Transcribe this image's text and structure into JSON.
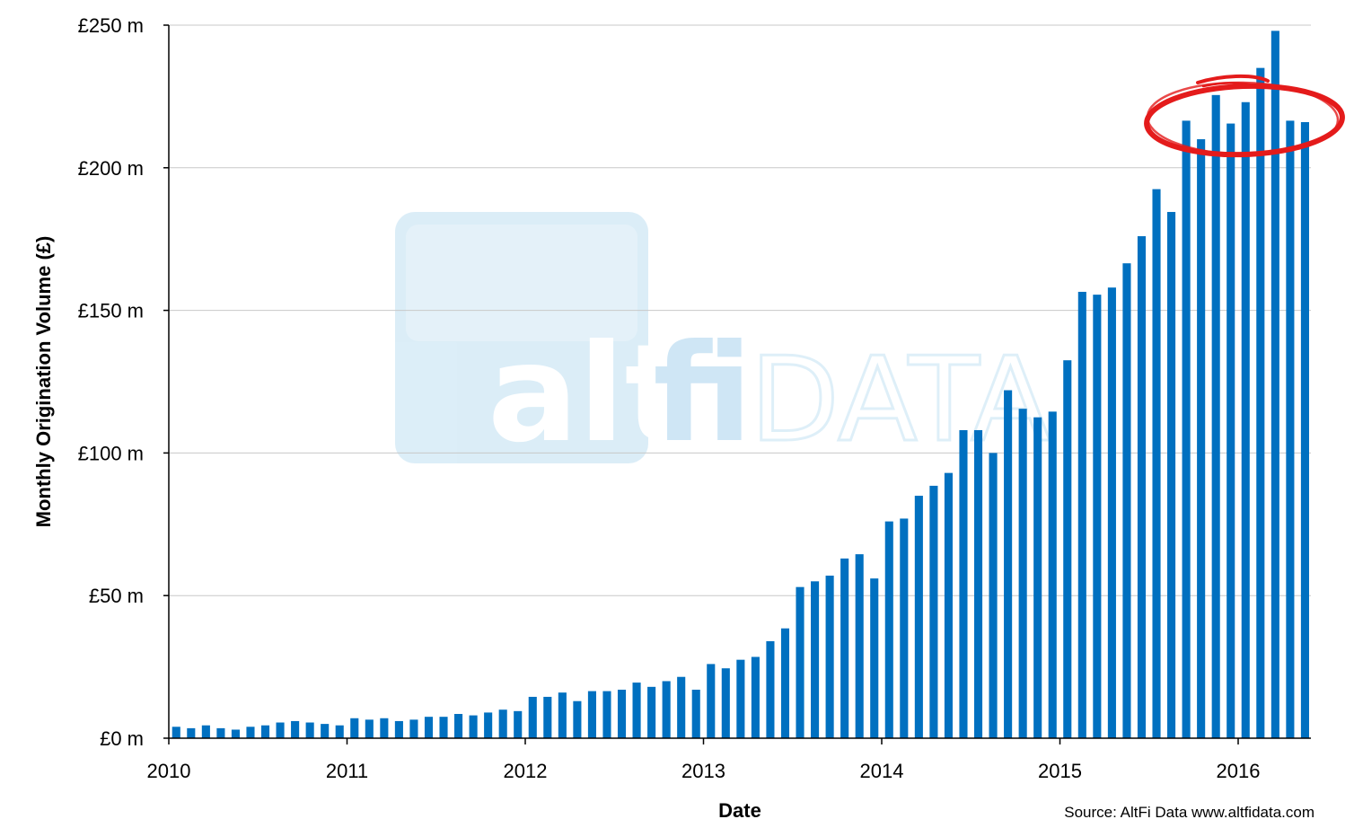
{
  "chart_data": {
    "type": "bar",
    "title": "",
    "xlabel": "Date",
    "ylabel": "Monthly Origination Volume (£)",
    "ylim": [
      0,
      250
    ],
    "y_ticks": [
      {
        "value": 0,
        "label": "£0 m"
      },
      {
        "value": 50,
        "label": "£50 m"
      },
      {
        "value": 100,
        "label": "£100 m"
      },
      {
        "value": 150,
        "label": "£150 m"
      },
      {
        "value": 200,
        "label": "£200 m"
      },
      {
        "value": 250,
        "label": "£250 m"
      }
    ],
    "x_ticks": [
      "2010",
      "2011",
      "2012",
      "2013",
      "2014",
      "2015",
      "2016"
    ],
    "grid": "horizontal",
    "bar_color": "#0070C0",
    "series": [
      {
        "start": "2010-01",
        "values": [
          4,
          3.5,
          4.5,
          3.5,
          3,
          4,
          4.5,
          5.5,
          6,
          5.5,
          5,
          4.5,
          7,
          6.5,
          7,
          6,
          6.5,
          7.5,
          7.5,
          8.5,
          8,
          9,
          10,
          9.5,
          14.5,
          14.5,
          16,
          13,
          16.5,
          16.5,
          17,
          19.5,
          18,
          20,
          21.5,
          17,
          26,
          24.5,
          27.5,
          28.5,
          34,
          38.5,
          53,
          55,
          57,
          63,
          64.5,
          56,
          76,
          77,
          85,
          88.5,
          93,
          108,
          108,
          100,
          122,
          115.5,
          112.5,
          114.5,
          132.5,
          156.5,
          155.5,
          158,
          166.5,
          176,
          192.5,
          184.5,
          216.5,
          210,
          225.5,
          215.5,
          223,
          235,
          248,
          216.5,
          216
        ]
      }
    ],
    "annotation": "red-circle-highlight"
  },
  "source_text": "Source: AltFi Data www.altfidata.com",
  "watermark": {
    "brand": "alt",
    "brand2": "fi",
    "suffix": "DATA"
  }
}
